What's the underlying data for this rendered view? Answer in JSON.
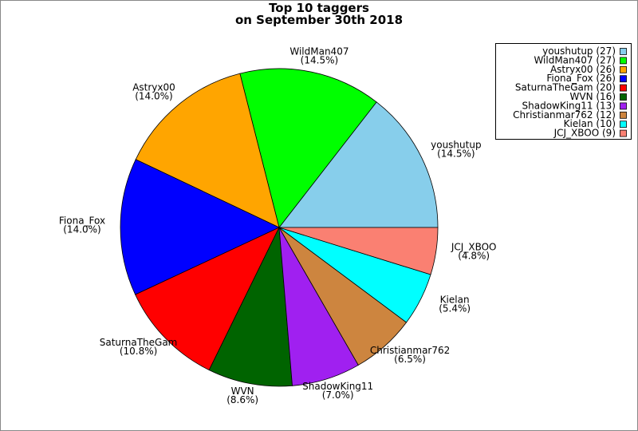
{
  "chart_data": {
    "type": "pie",
    "title_lines": [
      "Top 10 taggers",
      "on September 30th 2018"
    ],
    "categories": [
      "youshutup",
      "WildMan407",
      "Astryx00",
      "Fiona_Fox",
      "SaturnaTheGam",
      "WVN",
      "ShadowKing11",
      "Christianmar762",
      "Kielan",
      "JCJ_XBOO"
    ],
    "values": [
      14.5,
      14.5,
      14.0,
      14.0,
      10.8,
      8.6,
      7.0,
      6.5,
      5.4,
      4.8
    ],
    "value_labels": [
      "(14.5%)",
      "(14.5%)",
      "(14.0%)",
      "(14.0%)",
      "(10.8%)",
      "(8.6%)",
      "(7.0%)",
      "(6.5%)",
      "(5.4%)",
      "(4.8%)"
    ],
    "legend_labels": [
      "youshutup (27)",
      "WildMan407 (27)",
      "Astryx00 (26)",
      "Fiona_Fox (26)",
      "SaturnaTheGam (20)",
      "WVN (16)",
      "ShadowKing11 (13)",
      "Christianmar762 (12)",
      "Kielan (10)",
      "JCJ_XBOO (9)"
    ],
    "colors": [
      "#87ceeb",
      "#00ff00",
      "#ffa500",
      "#0000ff",
      "#ff0000",
      "#006400",
      "#a020f0",
      "#cd853f",
      "#00ffff",
      "#fa8072"
    ],
    "legend_position": "upper right"
  }
}
